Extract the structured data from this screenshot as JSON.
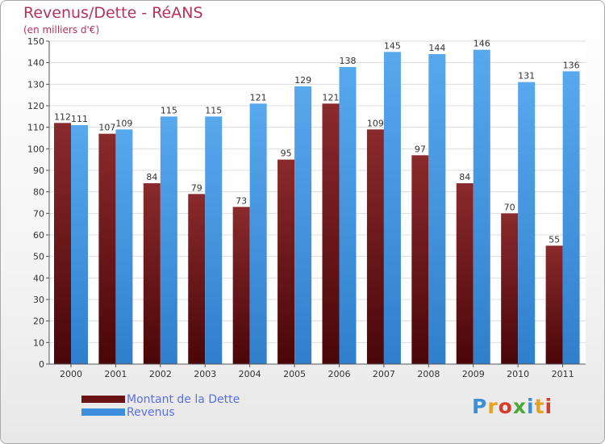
{
  "header": {
    "title": "Revenus/Dette - RéANS",
    "subtitle": "(en milliers d'€)"
  },
  "legend": {
    "items": [
      {
        "label": "Montant de la Dette",
        "color": "#6b1416"
      },
      {
        "label": "Revenus",
        "color": "#3d8fdd"
      }
    ]
  },
  "logo": {
    "text": "Proxiti",
    "letter_colors": [
      "#3a8fd8",
      "#e8a020",
      "#d63c2a",
      "#4aa83a",
      "#3a8fd8",
      "#e8a020",
      "#d63c2a"
    ]
  },
  "chart_data": {
    "type": "bar",
    "categories": [
      "2000",
      "2001",
      "2002",
      "2003",
      "2004",
      "2005",
      "2006",
      "2007",
      "2008",
      "2009",
      "2010",
      "2011"
    ],
    "series": [
      {
        "name": "Montant de la Dette",
        "values": [
          112,
          107,
          84,
          79,
          73,
          95,
          121,
          109,
          97,
          84,
          70,
          55
        ],
        "color": "#6b1416"
      },
      {
        "name": "Revenus",
        "values": [
          111,
          109,
          115,
          115,
          121,
          129,
          138,
          145,
          144,
          146,
          131,
          136
        ],
        "color": "#3d8fdd"
      }
    ],
    "title": "Revenus/Dette - RéANS",
    "subtitle": "(en milliers d'€)",
    "ylim": [
      0,
      150
    ],
    "yticks": [
      0,
      10,
      20,
      30,
      40,
      50,
      60,
      70,
      80,
      90,
      100,
      110,
      120,
      130,
      140,
      150
    ],
    "grid": true
  }
}
